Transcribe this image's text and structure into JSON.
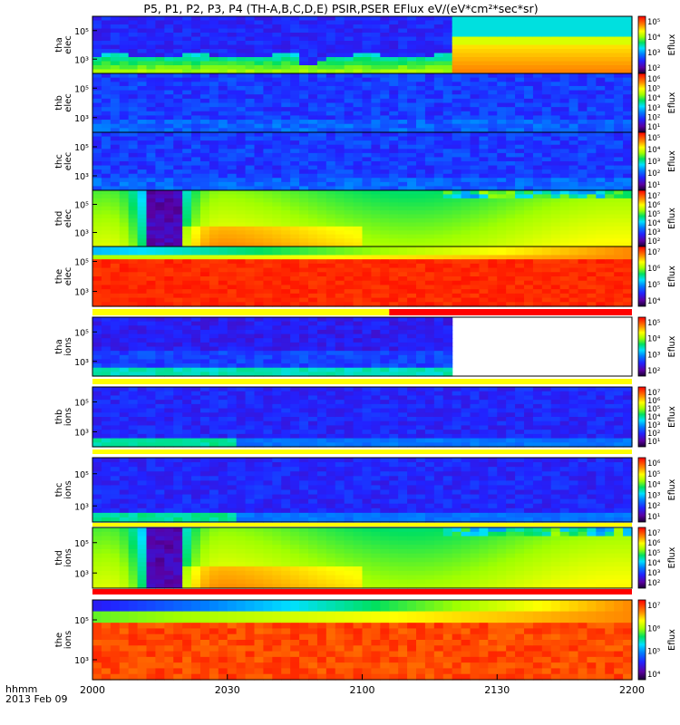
{
  "title": "P5, P1, P2, P3, P4 (TH-A,B,C,D,E) PSIR,PSER EFlux eV/(eV*cm²*sec*sr)",
  "time_axis": {
    "label_line1": "hhmm",
    "label_line2": "2013 Feb 09",
    "ticks": [
      "2000",
      "2030",
      "2100",
      "2130",
      "2200"
    ],
    "tick_values": [
      0,
      30,
      60,
      90,
      120
    ]
  },
  "colorbar_label": "Eflux",
  "chart_data": [
    {
      "type": "heatmap",
      "ylabel": [
        "tha",
        "elec"
      ],
      "yticks": [
        "10⁵",
        "10³"
      ],
      "cbar_ticks": [
        "10⁵",
        "10⁴",
        "10³",
        "10²"
      ],
      "pattern": "tha_elec"
    },
    {
      "type": "heatmap",
      "ylabel": [
        "thb",
        "elec"
      ],
      "yticks": [
        "10⁵",
        "10³"
      ],
      "cbar_ticks": [
        "10⁶",
        "10⁵",
        "10⁴",
        "10³",
        "10²",
        "10¹"
      ],
      "pattern": "noise"
    },
    {
      "type": "heatmap",
      "ylabel": [
        "thc",
        "elec"
      ],
      "yticks": [
        "10⁵",
        "10³"
      ],
      "cbar_ticks": [
        "10⁵",
        "10⁴",
        "10³",
        "10²",
        "10¹"
      ],
      "pattern": "noise"
    },
    {
      "type": "heatmap",
      "ylabel": [
        "thd",
        "elec"
      ],
      "yticks": [
        "10⁵",
        "10³"
      ],
      "cbar_ticks": [
        "10⁷",
        "10⁶",
        "10⁵",
        "10⁴",
        "10³",
        "10²"
      ],
      "pattern": "thd"
    },
    {
      "type": "heatmap",
      "ylabel": [
        "the",
        "elec"
      ],
      "yticks": [
        "10⁵",
        "10³"
      ],
      "cbar_ticks": [
        "10⁷",
        "10⁶",
        "10⁵",
        "10⁴"
      ],
      "pattern": "the"
    },
    {
      "type": "heatmap",
      "ylabel": [
        "tha",
        "ions"
      ],
      "yticks": [
        "10⁵",
        "10³"
      ],
      "cbar_ticks": [
        "10⁵",
        "10⁴",
        "10³",
        "10²"
      ],
      "pattern": "tha_ions"
    },
    {
      "type": "heatmap",
      "ylabel": [
        "thb",
        "ions"
      ],
      "yticks": [
        "10⁵",
        "10³"
      ],
      "cbar_ticks": [
        "10⁷",
        "10⁶",
        "10⁵",
        "10⁴",
        "10³",
        "10²",
        "10¹"
      ],
      "pattern": "low_ions"
    },
    {
      "type": "heatmap",
      "ylabel": [
        "thc",
        "ions"
      ],
      "yticks": [
        "10⁵",
        "10³"
      ],
      "cbar_ticks": [
        "10⁶",
        "10⁵",
        "10⁴",
        "10³",
        "10²",
        "10¹"
      ],
      "pattern": "low_ions"
    },
    {
      "type": "heatmap",
      "ylabel": [
        "thd",
        "ions"
      ],
      "yticks": [
        "10⁵",
        "10³"
      ],
      "cbar_ticks": [
        "10⁷",
        "10⁶",
        "10⁵",
        "10⁴",
        "10³",
        "10²"
      ],
      "pattern": "thd"
    },
    {
      "type": "heatmap",
      "ylabel": [
        "the",
        "ions"
      ],
      "yticks": [
        "10⁵",
        "10³"
      ],
      "cbar_ticks": [
        "10⁷",
        "10⁶",
        "10⁵",
        "10⁴"
      ],
      "pattern": "the_ions"
    }
  ],
  "mode_bars": [
    {
      "after_panel": 4,
      "segments": [
        {
          "from": 0,
          "to": 66,
          "color": "#ffff00"
        },
        {
          "from": 66,
          "to": 120,
          "color": "#ff0000"
        }
      ]
    },
    {
      "after_panel": 5,
      "segments": [
        {
          "from": 0,
          "to": 120,
          "color": "#ffff00"
        }
      ]
    },
    {
      "after_panel": 6,
      "segments": [
        {
          "from": 0,
          "to": 120,
          "color": "#ffff00"
        }
      ]
    },
    {
      "after_panel": 7,
      "segments": [
        {
          "from": 0,
          "to": 120,
          "color": "#ffff00"
        }
      ]
    },
    {
      "after_panel": 8,
      "segments": [
        {
          "from": 0,
          "to": 120,
          "color": "#ff0000"
        }
      ]
    }
  ]
}
